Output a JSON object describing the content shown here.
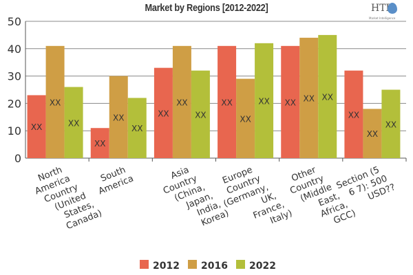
{
  "chart_data": {
    "type": "bar",
    "title": "Market by Regions [2012-2022]",
    "categories": [
      [
        "North",
        "America",
        "Country",
        "(United",
        "States,",
        "Canada)"
      ],
      [
        "South",
        "America"
      ],
      [
        "Asia",
        "Country",
        "(China,",
        "Japan,",
        "India,",
        "Korea)"
      ],
      [
        "Europe",
        "Country",
        "(Germany,",
        "UK,",
        "France,",
        "Italy)"
      ],
      [
        "Other",
        "Country",
        "(Middle",
        "East,",
        "Africa,",
        "GCC)"
      ],
      [
        "Section (5",
        "6 7): 500",
        "USD??"
      ]
    ],
    "series": [
      {
        "name": "2012",
        "color": "#e8664f",
        "values": [
          23,
          11,
          33,
          41,
          41,
          32
        ]
      },
      {
        "name": "2016",
        "color": "#cf9e45",
        "values": [
          41,
          30,
          41,
          29,
          44,
          18
        ]
      },
      {
        "name": "2022",
        "color": "#b3bf3a",
        "values": [
          26,
          22,
          32,
          42,
          45,
          25
        ]
      }
    ],
    "data_label": "XX",
    "ylim": [
      0,
      50
    ],
    "yticks": [
      0,
      10,
      20,
      30,
      40,
      50
    ],
    "grid": true,
    "legend": "bottom",
    "xlabel": "",
    "ylabel": ""
  },
  "logo": {
    "text": "HTF",
    "subtext": "Market Intelligence"
  }
}
